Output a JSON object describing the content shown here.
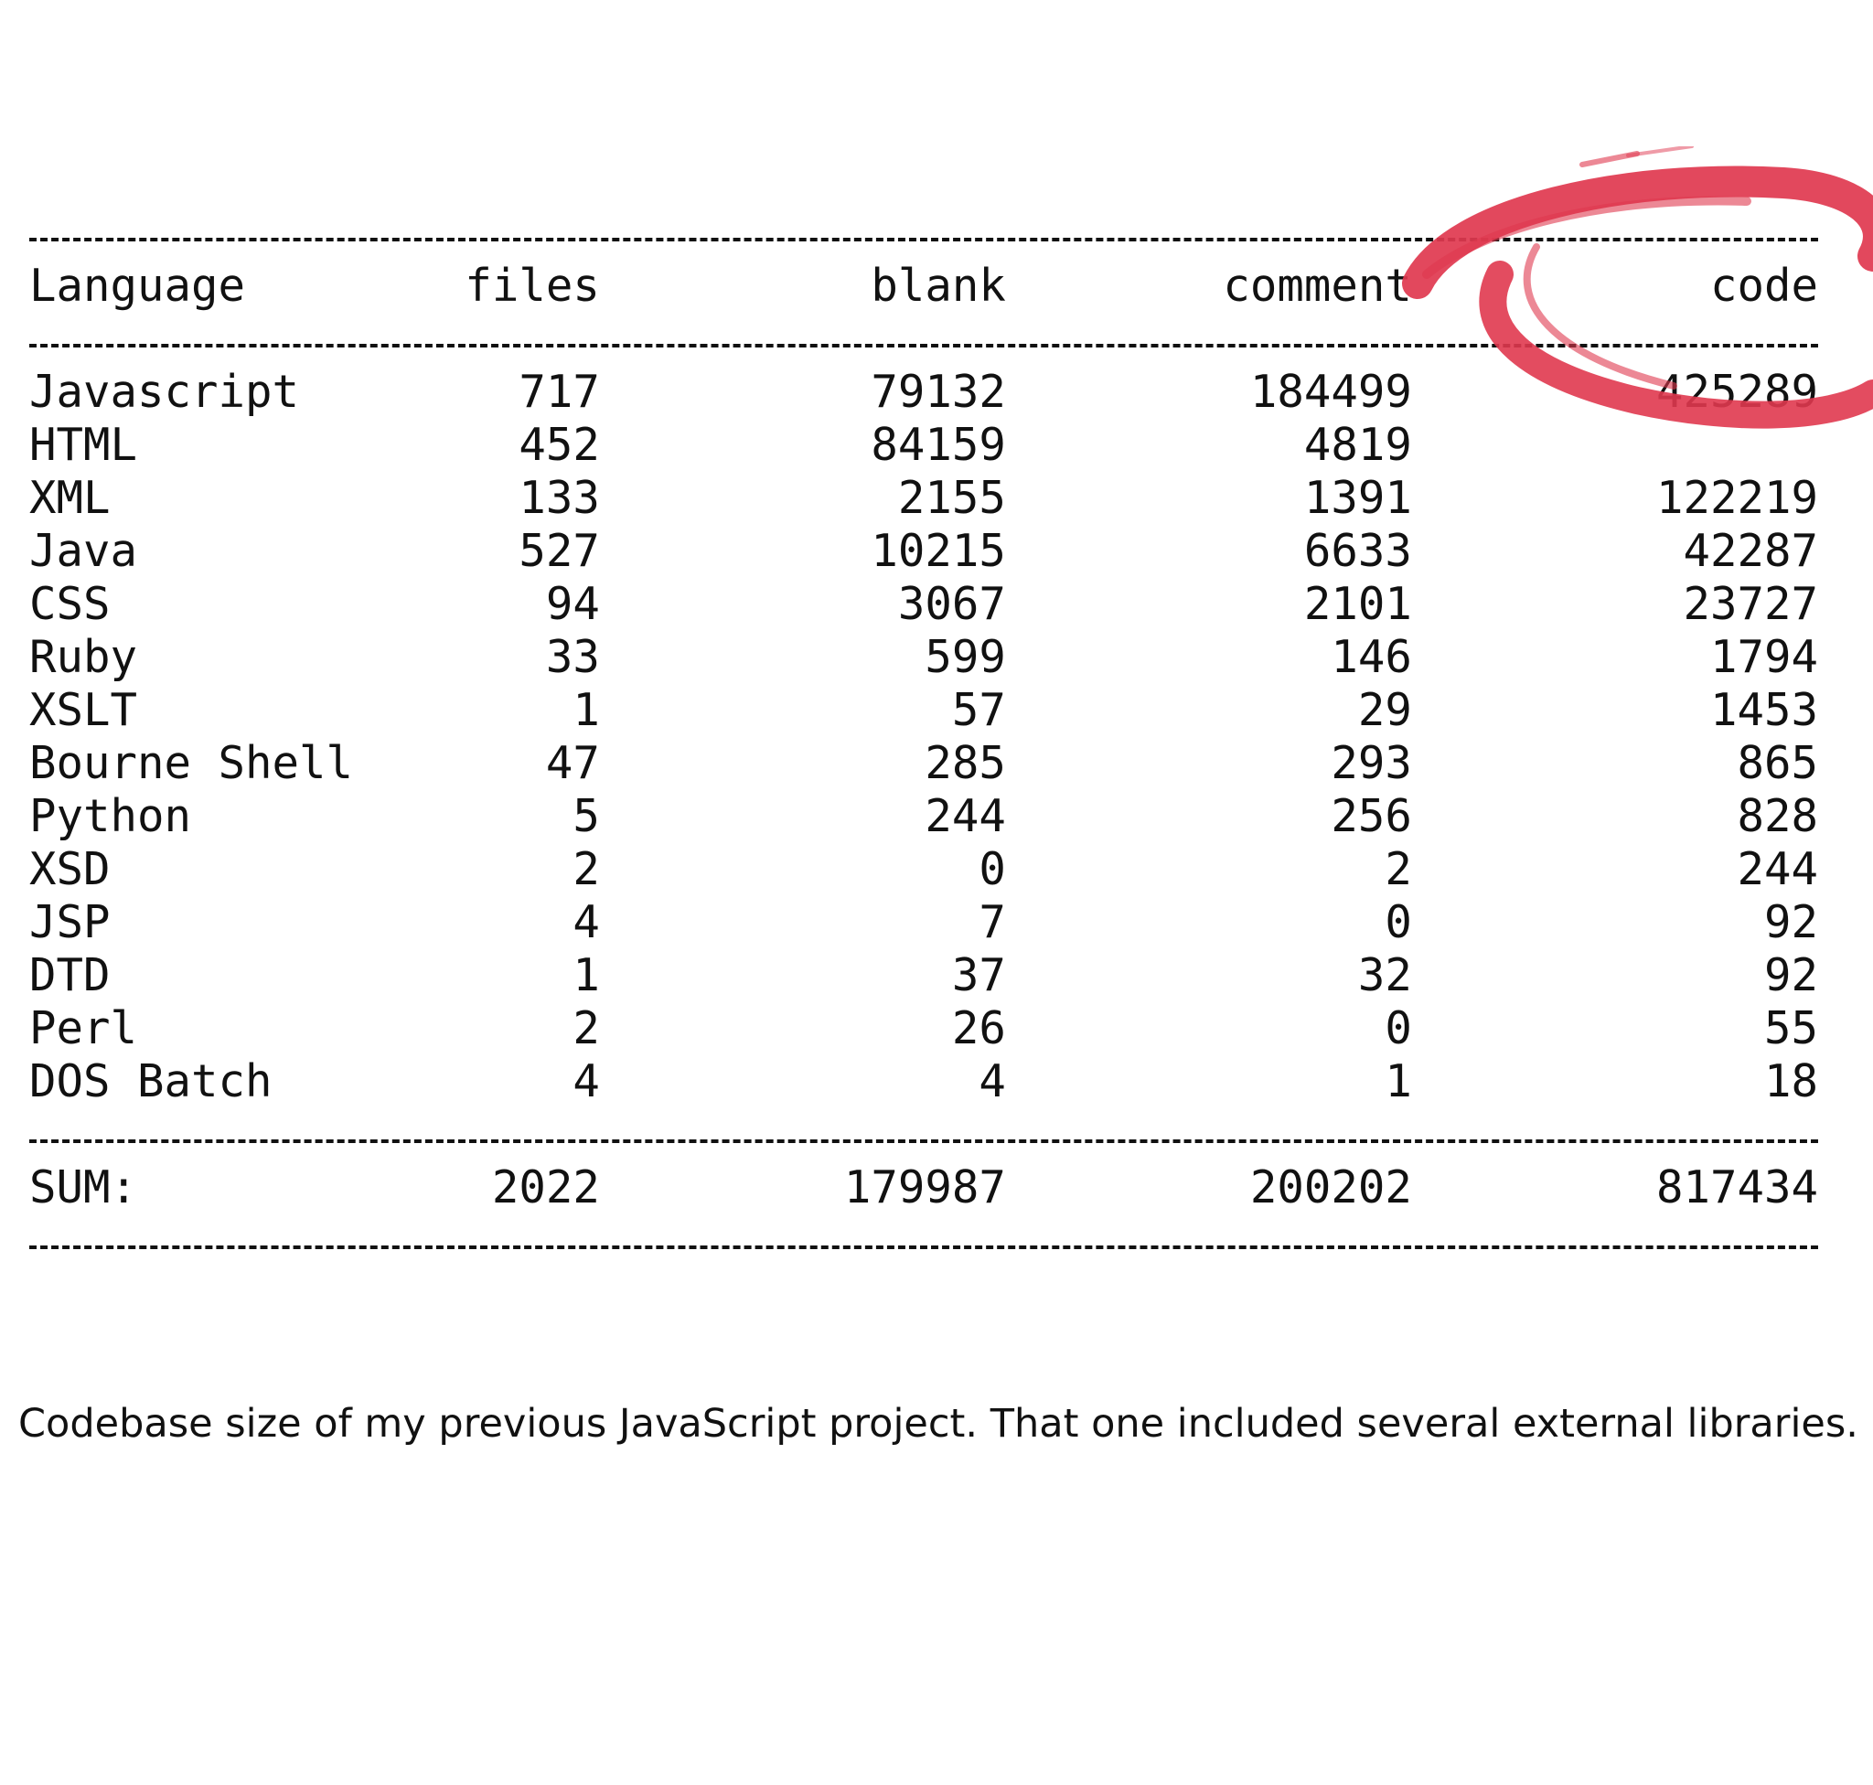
{
  "table": {
    "headers": {
      "language": "Language",
      "files": "files",
      "blank": "blank",
      "comment": "comment",
      "code": "code"
    },
    "rows": [
      {
        "language": "Javascript",
        "files": "717",
        "blank": "79132",
        "comment": "184499",
        "code": "425289"
      },
      {
        "language": "HTML",
        "files": "452",
        "blank": "84159",
        "comment": "4819",
        "code": ""
      },
      {
        "language": "XML",
        "files": "133",
        "blank": "2155",
        "comment": "1391",
        "code": "122219"
      },
      {
        "language": "Java",
        "files": "527",
        "blank": "10215",
        "comment": "6633",
        "code": "42287"
      },
      {
        "language": "CSS",
        "files": "94",
        "blank": "3067",
        "comment": "2101",
        "code": "23727"
      },
      {
        "language": "Ruby",
        "files": "33",
        "blank": "599",
        "comment": "146",
        "code": "1794"
      },
      {
        "language": "XSLT",
        "files": "1",
        "blank": "57",
        "comment": "29",
        "code": "1453"
      },
      {
        "language": "Bourne Shell",
        "files": "47",
        "blank": "285",
        "comment": "293",
        "code": "865"
      },
      {
        "language": "Python",
        "files": "5",
        "blank": "244",
        "comment": "256",
        "code": "828"
      },
      {
        "language": "XSD",
        "files": "2",
        "blank": "0",
        "comment": "2",
        "code": "244"
      },
      {
        "language": "JSP",
        "files": "4",
        "blank": "7",
        "comment": "0",
        "code": "92"
      },
      {
        "language": "DTD",
        "files": "1",
        "blank": "37",
        "comment": "32",
        "code": "92"
      },
      {
        "language": "Perl",
        "files": "2",
        "blank": "26",
        "comment": "0",
        "code": "55"
      },
      {
        "language": "DOS Batch",
        "files": "4",
        "blank": "4",
        "comment": "1",
        "code": "18"
      }
    ],
    "sum": {
      "language": "SUM:",
      "files": "2022",
      "blank": "179987",
      "comment": "200202",
      "code": "817434"
    }
  },
  "caption": "Codebase size of my previous JavaScript project. That one included several external libraries.",
  "colors": {
    "highlight_mark": "#e0384f",
    "text": "#111111",
    "background": "#ffffff"
  }
}
